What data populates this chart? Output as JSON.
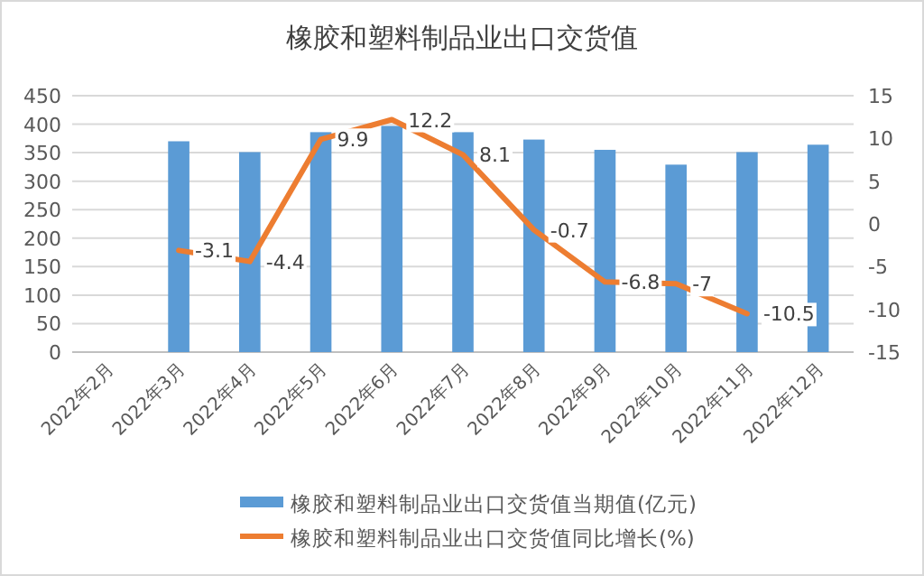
{
  "chart_data": {
    "type": "bar",
    "title": "橡胶和塑料制品业出口交货值",
    "categories": [
      "2022年2月",
      "2022年3月",
      "2022年4月",
      "2022年5月",
      "2022年6月",
      "2022年7月",
      "2022年8月",
      "2022年9月",
      "2022年10月",
      "2022年11月",
      "2022年12月"
    ],
    "series": [
      {
        "name": "橡胶和塑料制品业出口交货值当期值(亿元)",
        "color": "#5b9bd5",
        "values": [
          null,
          370,
          351,
          386,
          397,
          386,
          373,
          355,
          329,
          351,
          364
        ]
      },
      {
        "name": "橡胶和塑料制品业出口交货值同比增长(%)",
        "type": "line",
        "axis": "y2",
        "color": "#ed7d31",
        "values": [
          null,
          -3.1,
          -4.4,
          9.9,
          12.2,
          8.1,
          -0.7,
          -6.8,
          -7,
          -10.5,
          null
        ],
        "value_labels": [
          null,
          "-3.1",
          "-4.4",
          "9.9",
          "12.2",
          "8.1",
          "-0.7",
          "-6.8",
          "-7",
          "-10.5",
          null
        ]
      }
    ],
    "ylim": [
      0,
      450
    ],
    "yticks": [
      0,
      50,
      100,
      150,
      200,
      250,
      300,
      350,
      400,
      450
    ],
    "y2lim": [
      -15,
      15
    ],
    "y2ticks": [
      -15,
      -10,
      -5,
      0,
      5,
      10,
      15
    ],
    "grid": "y",
    "legend": "bottom"
  }
}
